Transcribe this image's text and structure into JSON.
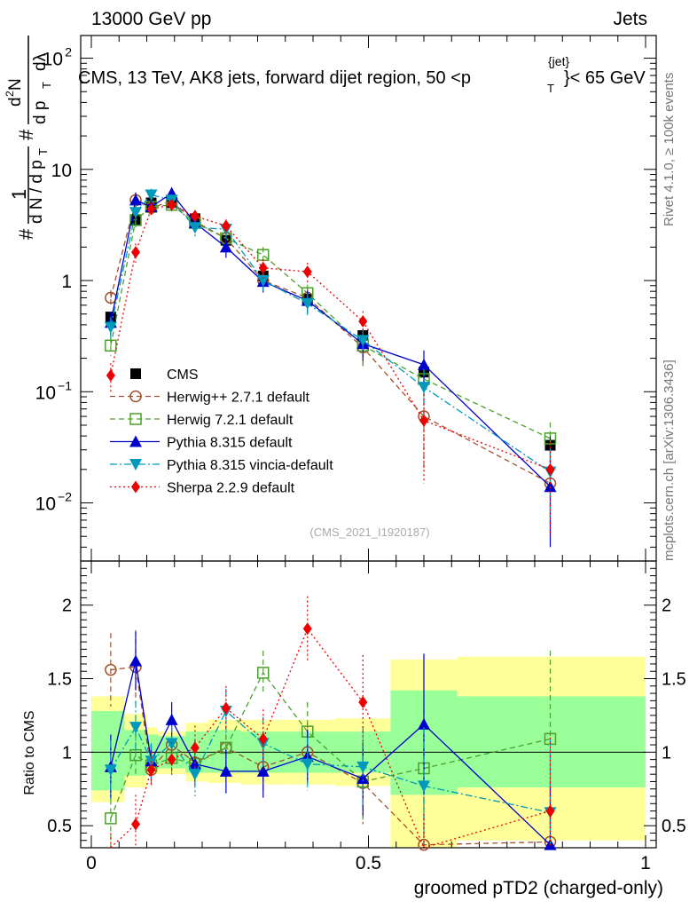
{
  "header": {
    "left": "13000 GeV pp",
    "right": "Jets"
  },
  "chart_data": {
    "type": "scatter",
    "title": "CMS, 13 TeV, AK8 jets, forward dijet region, 50 <p",
    "title_sup": "{jet}",
    "title_sub": "T",
    "title_end": "}< 65 GeV",
    "xlabel": "groomed pTD2 (charged-only)",
    "ylabel_upper": "# 1/dN/dp_T  # d²N / dp_T dλ",
    "ylabel_lower": "Ratio to CMS",
    "upper_ylabel_parts": {
      "hash1": "#",
      "one": "1",
      "dN": "d N / d p",
      "T1": "T",
      "hash2": "#",
      "d2N": "d",
      "two": "2",
      "N": "N",
      "dp": "d p",
      "T2": "T",
      "dlam": "dλ"
    },
    "xlim": [
      0,
      1
    ],
    "ylim_upper_log": [
      0.003,
      160
    ],
    "ylim_ratio": [
      0.35,
      2.3
    ],
    "x_ticks": [
      {
        "v": 0,
        "label": "0"
      },
      {
        "v": 0.5,
        "label": "0.5"
      },
      {
        "v": 1,
        "label": "1"
      }
    ],
    "y_ticks_upper": [
      {
        "v": 0.01,
        "base": "10",
        "exp": "−2"
      },
      {
        "v": 0.1,
        "base": "10",
        "exp": "−1"
      },
      {
        "v": 1,
        "base": "1",
        "exp": ""
      },
      {
        "v": 10,
        "base": "10",
        "exp": ""
      },
      {
        "v": 100,
        "base": "10",
        "exp": "2"
      }
    ],
    "y_ticks_ratio": [
      {
        "v": 0.5,
        "label": "0.5"
      },
      {
        "v": 1,
        "label": "1"
      },
      {
        "v": 1.5,
        "label": "1.5"
      },
      {
        "v": 2,
        "label": "2"
      }
    ],
    "bin_edges": [
      0,
      0.06,
      0.1,
      0.12,
      0.17,
      0.21,
      0.27,
      0.35,
      0.44,
      0.54,
      0.66,
      1.0
    ],
    "x": [
      0.035,
      0.08,
      0.108,
      0.145,
      0.187,
      0.243,
      0.31,
      0.39,
      0.49,
      0.6,
      0.828
    ],
    "ratio_bands": {
      "stat_syst_yellow": [
        [
          0.66,
          1.38
        ],
        [
          0.76,
          1.26
        ],
        [
          0.85,
          1.17
        ],
        [
          0.85,
          1.14
        ],
        [
          0.8,
          1.2
        ],
        [
          0.79,
          1.22
        ],
        [
          0.78,
          1.22
        ],
        [
          0.78,
          1.22
        ],
        [
          0.77,
          1.23
        ],
        [
          0.35,
          1.63
        ],
        [
          0.4,
          1.65
        ]
      ],
      "stat_green": [
        [
          0.74,
          1.28
        ],
        [
          0.84,
          1.15
        ],
        [
          0.88,
          1.12
        ],
        [
          0.89,
          1.11
        ],
        [
          0.86,
          1.14
        ],
        [
          0.86,
          1.15
        ],
        [
          0.86,
          1.14
        ],
        [
          0.86,
          1.14
        ],
        [
          0.86,
          1.14
        ],
        [
          0.71,
          1.42
        ],
        [
          0.76,
          1.38
        ]
      ]
    },
    "series": [
      {
        "name": "CMS",
        "legend": "CMS",
        "color": "#000000",
        "marker": "square-filled",
        "line": "none",
        "values": [
          0.47,
          3.5,
          5.0,
          5.0,
          3.6,
          2.3,
          1.1,
          0.68,
          0.32,
          0.15,
          0.033
        ],
        "err": [
          0.05,
          0.3,
          0.35,
          0.35,
          0.3,
          0.2,
          0.12,
          0.08,
          0.05,
          0.03,
          0.01
        ]
      },
      {
        "name": "Herwig++ 2.7.1 default",
        "legend": "Herwig++ 2.7.1 default",
        "color": "#a0522d",
        "marker": "circle-open",
        "line": "dashed",
        "values": [
          0.7,
          5.3,
          4.5,
          5.2,
          3.4,
          2.4,
          1.0,
          0.7,
          0.25,
          0.06,
          0.015
        ],
        "err": [
          0.12,
          0.8,
          0.6,
          0.6,
          0.5,
          0.4,
          0.2,
          0.15,
          0.08,
          0.04,
          0.01
        ],
        "ratio": [
          1.56,
          1.58,
          0.88,
          1.05,
          0.93,
          1.03,
          0.9,
          1.0,
          0.79,
          0.37,
          0.39
        ],
        "ratio_err": [
          0.25,
          0.25,
          0.12,
          0.12,
          0.15,
          0.15,
          0.18,
          0.2,
          0.28,
          0.45,
          0.6
        ]
      },
      {
        "name": "Herwig 7.2.1 default",
        "legend": "Herwig 7.2.1 default",
        "color": "#4aa02c",
        "marker": "square-open",
        "line": "dashed",
        "values": [
          0.26,
          3.5,
          4.6,
          4.8,
          3.3,
          2.4,
          1.7,
          0.77,
          0.26,
          0.13,
          0.038
        ],
        "err": [
          0.05,
          0.5,
          0.6,
          0.6,
          0.5,
          0.4,
          0.3,
          0.15,
          0.08,
          0.04,
          0.015
        ],
        "ratio": [
          0.55,
          0.98,
          0.91,
          0.96,
          0.92,
          1.03,
          1.54,
          1.14,
          0.8,
          0.89,
          1.09
        ],
        "ratio_err": [
          0.25,
          0.15,
          0.12,
          0.12,
          0.15,
          0.15,
          0.15,
          0.2,
          0.26,
          0.4,
          0.6
        ]
      },
      {
        "name": "Pythia 8.315 default",
        "legend": "Pythia 8.315 default",
        "color": "#0000cc",
        "marker": "triangle-up",
        "line": "solid",
        "values": [
          0.42,
          5.3,
          4.6,
          6.1,
          3.3,
          2.0,
          0.98,
          0.66,
          0.27,
          0.175,
          0.014
        ],
        "err": [
          0.1,
          0.9,
          0.7,
          0.8,
          0.6,
          0.4,
          0.2,
          0.15,
          0.08,
          0.06,
          0.01
        ],
        "ratio": [
          0.9,
          1.62,
          0.94,
          1.22,
          0.92,
          0.87,
          0.87,
          0.97,
          0.82,
          1.19,
          0.37
        ],
        "ratio_err": [
          0.22,
          0.2,
          0.12,
          0.12,
          0.15,
          0.15,
          0.18,
          0.18,
          0.25,
          0.48,
          0.4
        ]
      },
      {
        "name": "Pythia 8.315 vincia-default",
        "legend": "Pythia 8.315 vincia-default",
        "color": "#0099bb",
        "marker": "triangle-down",
        "line": "dashdot",
        "values": [
          0.38,
          4.1,
          5.9,
          5.3,
          3.0,
          2.9,
          1.0,
          0.62,
          0.29,
          0.11,
          0.019
        ],
        "err": [
          0.09,
          0.7,
          0.8,
          0.7,
          0.5,
          0.5,
          0.2,
          0.14,
          0.08,
          0.05,
          0.012
        ],
        "ratio": [
          0.88,
          1.17,
          0.94,
          1.06,
          0.85,
          1.28,
          1.06,
          0.92,
          0.9,
          0.77,
          0.59
        ],
        "ratio_err": [
          0.2,
          0.18,
          0.12,
          0.12,
          0.15,
          0.15,
          0.18,
          0.18,
          0.27,
          0.4,
          0.5
        ]
      },
      {
        "name": "Sherpa 2.2.9 default",
        "legend": "Sherpa 2.2.9 default",
        "color": "#ee0000",
        "marker": "diamond",
        "line": "dotted",
        "values": [
          0.14,
          1.8,
          4.4,
          4.8,
          3.8,
          3.1,
          1.3,
          1.2,
          0.43,
          0.055,
          0.02
        ],
        "err": [
          0.04,
          0.35,
          0.6,
          0.6,
          0.5,
          0.45,
          0.25,
          0.25,
          0.1,
          0.04,
          0.015
        ],
        "ratio": [
          0.3,
          0.51,
          0.88,
          0.95,
          1.03,
          1.3,
          1.09,
          1.84,
          1.34,
          0.28,
          0.6
        ],
        "ratio_err": [
          0.15,
          0.2,
          0.12,
          0.12,
          0.15,
          0.15,
          0.2,
          0.22,
          0.32,
          0.3,
          0.5
        ]
      }
    ],
    "annotation": "(CMS_2021_I1920187)",
    "side_text_top": "Rivet 4.1.0, ≥ 100k events",
    "side_text_bottom": "mcplots.cern.ch [arXiv:1306.3436]"
  }
}
